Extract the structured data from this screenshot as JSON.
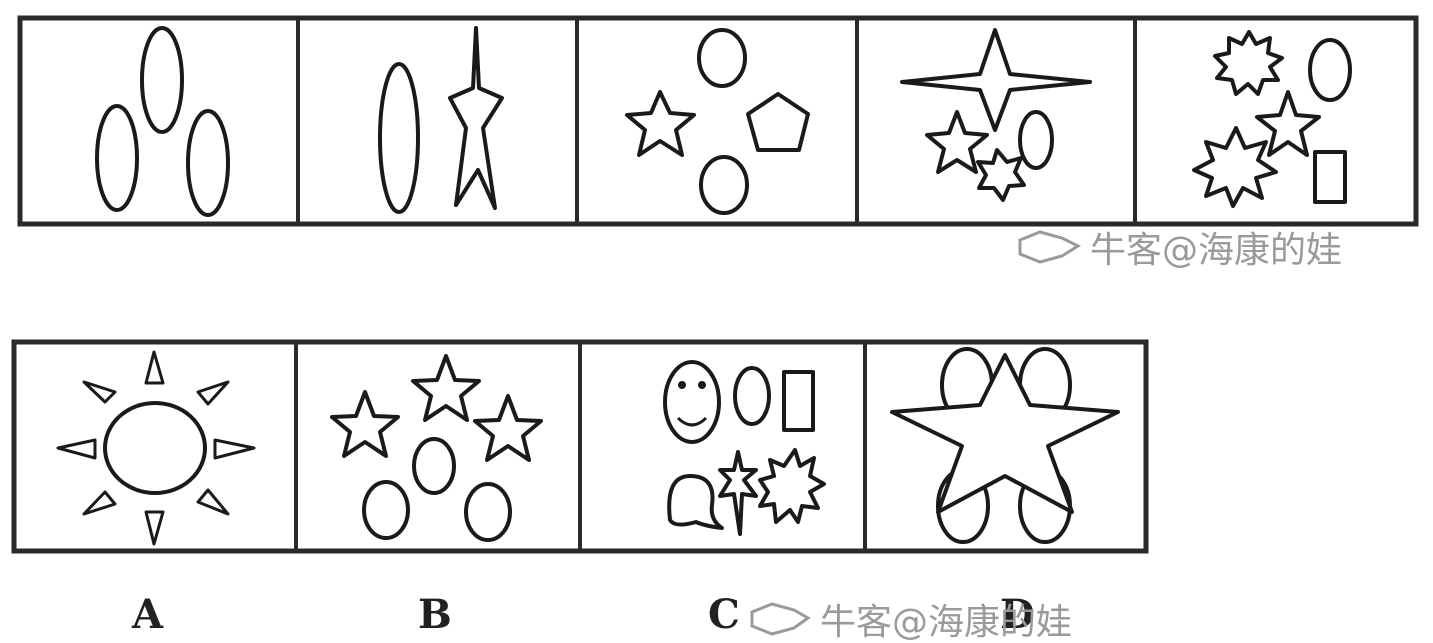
{
  "question_row": {
    "panels": [
      {
        "figure": "three-ellipses"
      },
      {
        "figure": "ellipse-and-spiked-star"
      },
      {
        "figure": "circles-star-pentagon"
      },
      {
        "figure": "four-point-star-cluster"
      },
      {
        "figure": "mixed-shapes-cluster"
      }
    ]
  },
  "option_row": {
    "options": [
      {
        "label": "A",
        "figure": "sun-circle-with-triangles"
      },
      {
        "label": "B",
        "figure": "three-stars-three-ellipses"
      },
      {
        "label": "C",
        "figure": "smiley-and-shapes"
      },
      {
        "label": "D",
        "figure": "star-with-four-ellipses"
      }
    ]
  },
  "watermarks": [
    {
      "text": "牛客@海康的娃"
    },
    {
      "text": "牛客@海康的娃"
    }
  ],
  "colors": {
    "stroke": "#1a1a1a",
    "frame": "#2a2a2a",
    "watermark": "#9a9a9a",
    "background": "#ffffff"
  }
}
